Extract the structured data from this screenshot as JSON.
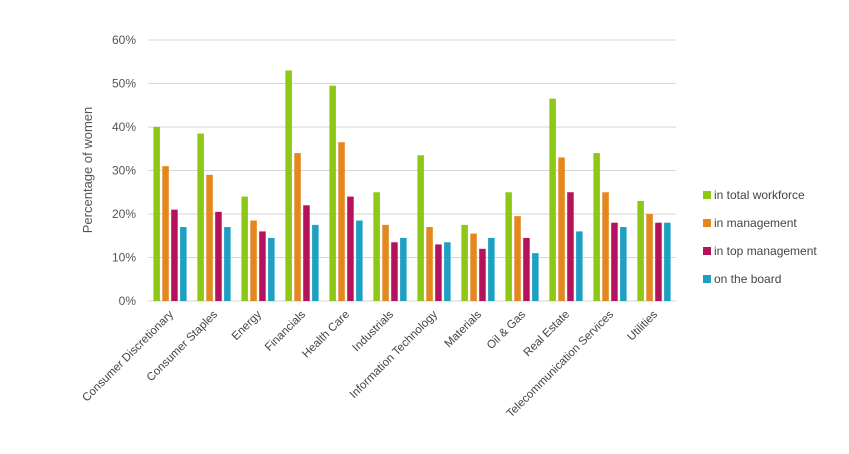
{
  "chart_data": {
    "type": "bar",
    "title": "",
    "xlabel": "",
    "ylabel": "Percentage of women",
    "ylim": [
      0,
      60
    ],
    "yticks": [
      "0%",
      "10%",
      "20%",
      "30%",
      "40%",
      "50%",
      "60%"
    ],
    "grid": true,
    "legend_position": "right",
    "categories": [
      "Consumer Discretionary",
      "Consumer Staples",
      "Energy",
      "Financials",
      "Health Care",
      "Industrials",
      "Information Technology",
      "Materials",
      "Oil & Gas",
      "Real Estate",
      "Telecommunication Services",
      "Utilities"
    ],
    "series": [
      {
        "name": "in total workforce",
        "color": "#8cc815",
        "values": [
          40,
          38.5,
          24,
          53,
          49.5,
          25,
          33.5,
          17.5,
          25,
          46.5,
          34,
          23
        ]
      },
      {
        "name": "in management",
        "color": "#e4871e",
        "values": [
          31,
          29,
          18.5,
          34,
          36.5,
          17.5,
          17,
          15.5,
          19.5,
          33,
          25,
          20
        ]
      },
      {
        "name": "in top management",
        "color": "#b5115e",
        "values": [
          21,
          20.5,
          16,
          22,
          24,
          13.5,
          13,
          12,
          14.5,
          25,
          18,
          18
        ]
      },
      {
        "name": "on the board",
        "color": "#1ea0c3",
        "values": [
          17,
          17,
          14.5,
          17.5,
          18.5,
          14.5,
          13.5,
          14.5,
          11,
          16,
          17,
          18
        ]
      }
    ]
  }
}
